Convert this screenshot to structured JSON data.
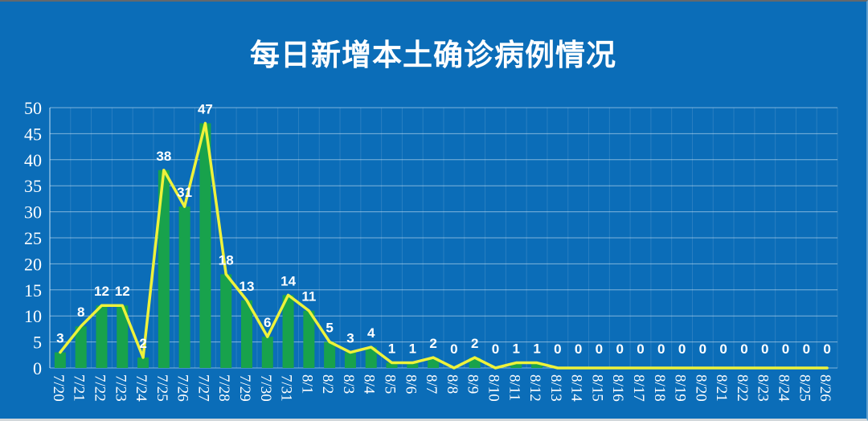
{
  "chart_data": {
    "type": "bar+line",
    "title": "每日新增本土确诊病例情况",
    "categories": [
      "7/20",
      "7/21",
      "7/22",
      "7/23",
      "7/24",
      "7/25",
      "7/26",
      "7/27",
      "7/28",
      "7/29",
      "7/30",
      "7/31",
      "8/1",
      "8/2",
      "8/3",
      "8/4",
      "8/5",
      "8/6",
      "8/7",
      "8/8",
      "8/9",
      "8/10",
      "8/11",
      "8/12",
      "8/13",
      "8/14",
      "8/15",
      "8/16",
      "8/17",
      "8/18",
      "8/19",
      "8/20",
      "8/21",
      "8/22",
      "8/23",
      "8/24",
      "8/25",
      "8/26"
    ],
    "values": [
      3,
      8,
      12,
      12,
      2,
      38,
      31,
      47,
      18,
      13,
      6,
      14,
      11,
      5,
      3,
      4,
      1,
      1,
      2,
      0,
      2,
      0,
      1,
      1,
      0,
      0,
      0,
      0,
      0,
      0,
      0,
      0,
      0,
      0,
      0,
      0,
      0,
      0
    ],
    "value_labels": [
      "3",
      "8",
      "12",
      "12",
      "2",
      "38",
      "31",
      "47",
      "18",
      "13",
      "6",
      "14",
      "11",
      "5",
      "3",
      "4",
      "1",
      "1",
      "2",
      "0",
      "2",
      "0",
      "1",
      "1",
      "0",
      "0",
      "0",
      "0",
      "0",
      "0",
      "0",
      "0",
      "0",
      "0",
      "0",
      "0",
      "0",
      "0"
    ],
    "xlabel": "",
    "ylabel": "",
    "ylim": [
      0,
      50
    ],
    "ytick_step": 5,
    "yticks": [
      "0",
      "5",
      "10",
      "15",
      "20",
      "25",
      "30",
      "35",
      "40",
      "45",
      "50"
    ],
    "grid": "horizontal major lines on, faint vertical category lines",
    "legend": "none",
    "colors": {
      "background": "#0b6db8",
      "bar": "#18a24c",
      "line": "#eef23a",
      "grid": "rgba(223,238,249,0.55)",
      "grid_vertical": "rgba(255,255,255,0.13)",
      "text": "#ffffff"
    }
  }
}
